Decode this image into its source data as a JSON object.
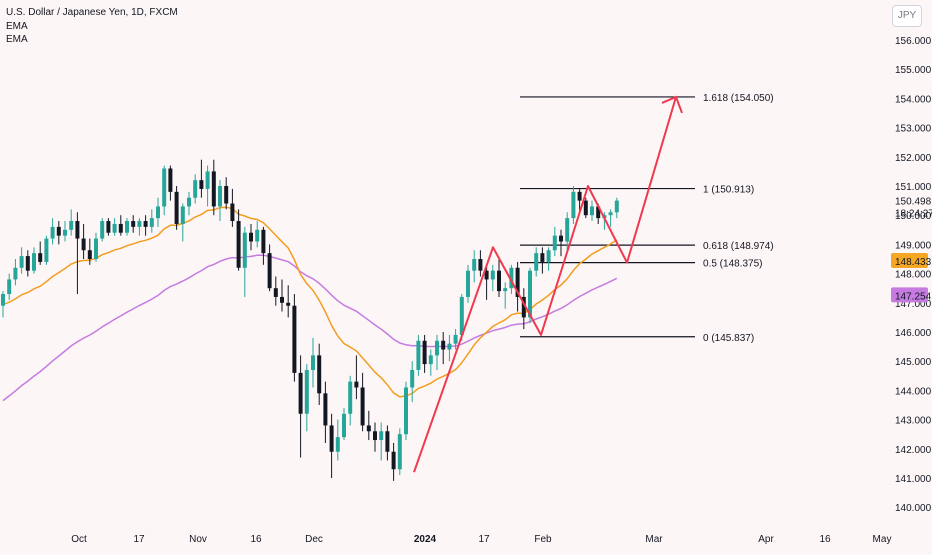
{
  "header": {
    "symbol_title": "U.S. Dollar / Japanese Yen, 1D, FXCM",
    "indicator_1": "EMA",
    "indicator_2": "EMA",
    "currency_button": "JPY"
  },
  "chart_data": {
    "type": "candlestick",
    "title": "U.S. Dollar / Japanese Yen, 1D, FXCM",
    "price_axis": {
      "ticks": [
        "156.000",
        "155.000",
        "154.000",
        "153.000",
        "152.000",
        "151.000",
        "150.000",
        "149.000",
        "148.000",
        "147.000",
        "146.000",
        "145.000",
        "144.000",
        "143.000",
        "142.000",
        "141.000",
        "140.000"
      ],
      "range": [
        140.0,
        156.5
      ],
      "labels": {
        "last_price": "150.498",
        "countdown": "18:24:27",
        "ema_fast_value": "148.433",
        "ema_slow_value": "147.254"
      },
      "label_colors": {
        "ema_fast": "#f5a623",
        "ema_slow": "#c57be0"
      }
    },
    "time_axis": {
      "labels": [
        {
          "text": "Oct",
          "bold": false
        },
        {
          "text": "17",
          "bold": false
        },
        {
          "text": "Nov",
          "bold": false
        },
        {
          "text": "16",
          "bold": false
        },
        {
          "text": "Dec",
          "bold": false
        },
        {
          "text": "2024",
          "bold": true
        },
        {
          "text": "17",
          "bold": false
        },
        {
          "text": "Feb",
          "bold": false
        },
        {
          "text": "Mar",
          "bold": false
        },
        {
          "text": "Apr",
          "bold": false
        },
        {
          "text": "16",
          "bold": false
        },
        {
          "text": "May",
          "bold": false
        }
      ]
    },
    "fibonacci": [
      {
        "label": "1.618 (154.050)",
        "price": 154.05
      },
      {
        "label": "1 (150.913)",
        "price": 150.913
      },
      {
        "label": "0.618 (148.974)",
        "price": 148.974
      },
      {
        "label": "0.5 (148.375)",
        "price": 148.375
      },
      {
        "label": "0 (145.837)",
        "price": 145.837
      }
    ],
    "candles": [
      [
        146.9,
        147.4,
        146.5,
        147.3
      ],
      [
        147.3,
        148.0,
        147.1,
        147.8
      ],
      [
        147.8,
        148.5,
        147.6,
        148.2
      ],
      [
        148.2,
        148.9,
        148.0,
        148.6
      ],
      [
        148.6,
        148.8,
        147.9,
        148.1
      ],
      [
        148.1,
        148.9,
        148.0,
        148.7
      ],
      [
        148.7,
        149.1,
        148.3,
        148.4
      ],
      [
        148.4,
        149.3,
        148.3,
        149.2
      ],
      [
        149.2,
        149.9,
        149.0,
        149.6
      ],
      [
        149.6,
        149.8,
        149.0,
        149.3
      ],
      [
        149.3,
        149.8,
        149.1,
        149.5
      ],
      [
        149.5,
        150.2,
        149.3,
        149.8
      ],
      [
        149.8,
        150.1,
        147.3,
        149.2
      ],
      [
        149.2,
        149.7,
        148.5,
        148.8
      ],
      [
        148.8,
        149.2,
        148.3,
        148.5
      ],
      [
        148.5,
        149.4,
        148.4,
        149.2
      ],
      [
        149.2,
        149.9,
        149.1,
        149.8
      ],
      [
        149.8,
        149.9,
        149.3,
        149.4
      ],
      [
        149.4,
        149.9,
        149.3,
        149.7
      ],
      [
        149.7,
        150.0,
        149.3,
        149.4
      ],
      [
        149.4,
        149.9,
        149.3,
        149.8
      ],
      [
        149.8,
        150.0,
        149.4,
        149.6
      ],
      [
        149.6,
        149.9,
        149.3,
        149.8
      ],
      [
        149.8,
        150.0,
        149.3,
        149.6
      ],
      [
        149.6,
        150.2,
        149.4,
        149.9
      ],
      [
        149.9,
        150.6,
        149.6,
        150.3
      ],
      [
        150.3,
        151.7,
        150.0,
        151.6
      ],
      [
        151.6,
        151.7,
        150.5,
        150.8
      ],
      [
        150.8,
        151.0,
        149.5,
        149.7
      ],
      [
        149.7,
        150.4,
        149.1,
        150.3
      ],
      [
        150.3,
        150.8,
        150.0,
        150.6
      ],
      [
        150.6,
        151.4,
        150.4,
        151.2
      ],
      [
        151.2,
        151.9,
        150.6,
        150.9
      ],
      [
        150.9,
        151.7,
        150.3,
        151.5
      ],
      [
        151.5,
        151.9,
        150.0,
        150.3
      ],
      [
        150.3,
        151.2,
        149.8,
        151.0
      ],
      [
        151.0,
        151.3,
        150.2,
        150.4
      ],
      [
        150.4,
        150.9,
        149.6,
        149.8
      ],
      [
        149.8,
        150.2,
        148.1,
        148.2
      ],
      [
        148.2,
        149.6,
        147.2,
        149.4
      ],
      [
        149.4,
        149.7,
        148.8,
        149.1
      ],
      [
        149.1,
        149.8,
        148.9,
        149.5
      ],
      [
        149.5,
        149.6,
        148.3,
        148.7
      ],
      [
        148.7,
        149.0,
        147.4,
        147.5
      ],
      [
        147.5,
        147.9,
        146.9,
        147.2
      ],
      [
        147.2,
        147.8,
        146.7,
        147.0
      ],
      [
        147.0,
        147.6,
        146.5,
        146.9
      ],
      [
        146.9,
        147.3,
        144.3,
        144.6
      ],
      [
        144.6,
        145.2,
        141.7,
        143.2
      ],
      [
        143.2,
        144.9,
        142.6,
        144.7
      ],
      [
        144.7,
        145.8,
        144.1,
        145.2
      ],
      [
        145.2,
        145.6,
        143.5,
        143.9
      ],
      [
        143.9,
        144.3,
        142.2,
        142.8
      ],
      [
        142.8,
        143.2,
        141.0,
        141.9
      ],
      [
        141.9,
        143.0,
        141.6,
        142.4
      ],
      [
        142.4,
        143.4,
        142.3,
        143.2
      ],
      [
        143.2,
        144.5,
        142.8,
        144.3
      ],
      [
        144.3,
        145.2,
        143.7,
        144.1
      ],
      [
        144.1,
        144.6,
        142.6,
        142.8
      ],
      [
        142.8,
        143.3,
        142.3,
        142.6
      ],
      [
        142.6,
        142.9,
        141.9,
        142.3
      ],
      [
        142.3,
        142.9,
        141.6,
        142.6
      ],
      [
        142.6,
        142.8,
        141.6,
        141.9
      ],
      [
        141.9,
        142.2,
        140.9,
        141.3
      ],
      [
        141.3,
        142.7,
        141.1,
        142.5
      ],
      [
        142.5,
        144.3,
        142.3,
        144.1
      ],
      [
        144.1,
        145.0,
        143.6,
        144.7
      ],
      [
        144.7,
        145.9,
        144.5,
        145.7
      ],
      [
        145.7,
        145.9,
        144.6,
        144.9
      ],
      [
        144.9,
        145.4,
        144.5,
        145.2
      ],
      [
        145.2,
        145.9,
        144.7,
        145.7
      ],
      [
        145.7,
        146.0,
        144.9,
        145.4
      ],
      [
        145.4,
        145.9,
        145.0,
        145.6
      ],
      [
        145.6,
        146.1,
        145.4,
        145.9
      ],
      [
        145.9,
        147.3,
        145.7,
        147.2
      ],
      [
        147.2,
        148.3,
        147.0,
        148.1
      ],
      [
        148.1,
        148.8,
        147.7,
        148.5
      ],
      [
        148.5,
        148.8,
        147.9,
        148.1
      ],
      [
        148.1,
        148.3,
        147.1,
        147.8
      ],
      [
        147.8,
        148.3,
        147.4,
        148.1
      ],
      [
        148.1,
        148.5,
        147.2,
        147.4
      ],
      [
        147.4,
        147.7,
        146.8,
        147.5
      ],
      [
        147.5,
        148.3,
        147.3,
        148.2
      ],
      [
        148.2,
        148.4,
        146.7,
        147.2
      ],
      [
        147.2,
        147.5,
        146.1,
        146.5
      ],
      [
        146.5,
        148.2,
        146.3,
        148.1
      ],
      [
        148.1,
        148.9,
        147.9,
        148.7
      ],
      [
        148.7,
        148.9,
        148.0,
        148.4
      ],
      [
        148.4,
        148.9,
        148.1,
        148.8
      ],
      [
        148.8,
        149.6,
        148.6,
        149.3
      ],
      [
        149.3,
        149.5,
        148.6,
        149.1
      ],
      [
        149.1,
        150.1,
        148.8,
        149.9
      ],
      [
        149.9,
        151.0,
        149.7,
        150.8
      ],
      [
        150.8,
        150.9,
        150.1,
        150.5
      ],
      [
        150.5,
        150.6,
        149.9,
        150.0
      ],
      [
        150.0,
        150.5,
        149.8,
        150.3
      ],
      [
        150.3,
        150.4,
        149.7,
        149.9
      ],
      [
        149.9,
        150.1,
        149.5,
        150.0
      ],
      [
        150.0,
        150.2,
        149.6,
        150.1
      ],
      [
        150.1,
        150.6,
        149.9,
        150.5
      ]
    ]
  }
}
